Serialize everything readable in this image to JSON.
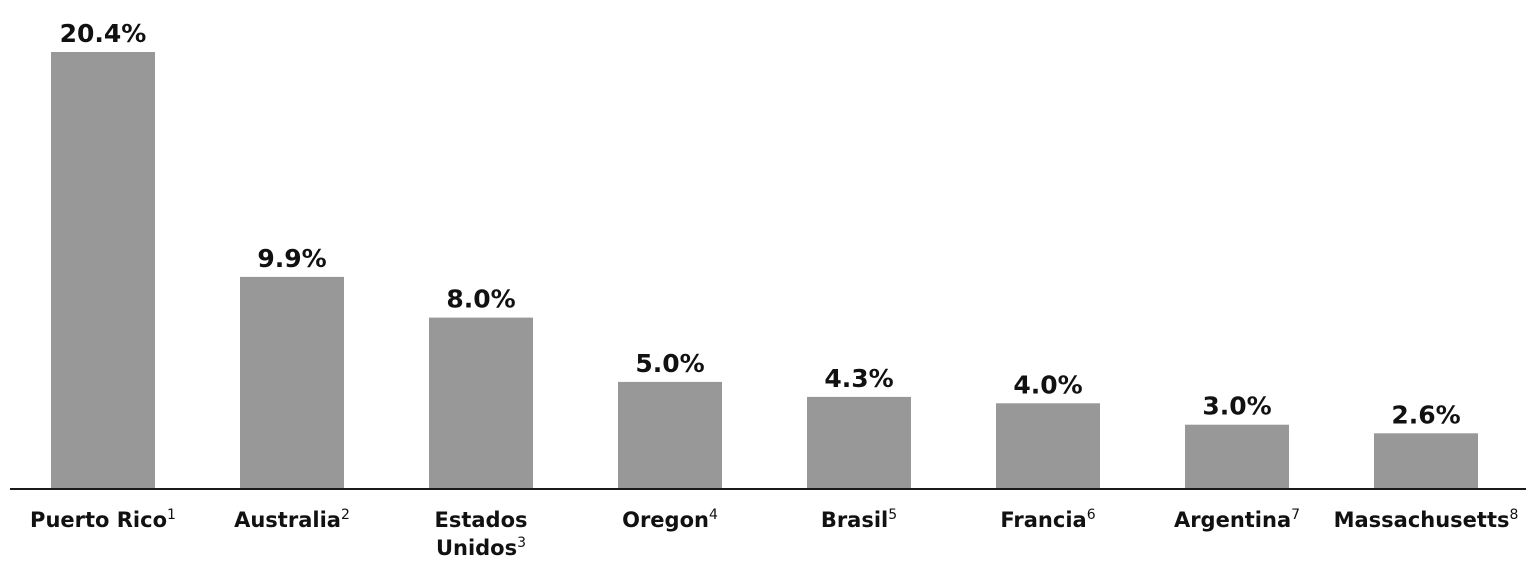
{
  "chart_data": {
    "type": "bar",
    "categories": [
      {
        "label": "Puerto Rico",
        "note": "1"
      },
      {
        "label": "Australia",
        "note": "2"
      },
      {
        "label": "Estados Unidos",
        "lines": [
          "Estados",
          "Unidos"
        ],
        "note": "3"
      },
      {
        "label": "Oregon",
        "note": "4"
      },
      {
        "label": "Brasil",
        "note": "5"
      },
      {
        "label": "Francia",
        "note": "6"
      },
      {
        "label": "Argentina",
        "note": "7"
      },
      {
        "label": "Massachusetts",
        "note": "8"
      }
    ],
    "values": [
      20.4,
      9.9,
      8.0,
      5.0,
      4.3,
      4.0,
      3.0,
      2.6
    ],
    "value_labels": [
      "20.4%",
      "9.9%",
      "8.0%",
      "5.0%",
      "4.3%",
      "4.0%",
      "3.0%",
      "2.6%"
    ],
    "title": "",
    "xlabel": "",
    "ylabel": "",
    "ylim": [
      0,
      20.4
    ],
    "grid": false,
    "legend": "none",
    "colors": {
      "bar": "#989898",
      "axis": "#1a1a1a",
      "text": "#111111"
    }
  }
}
